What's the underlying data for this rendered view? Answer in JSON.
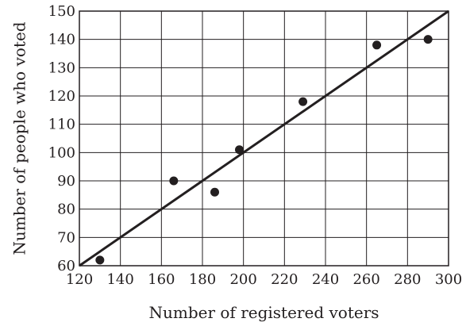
{
  "chart_data": {
    "type": "scatter",
    "xlabel": "Number of registered voters",
    "ylabel": "Number of people who voted",
    "xlim": [
      120,
      300
    ],
    "ylim": [
      60,
      150
    ],
    "xticks": [
      120,
      140,
      160,
      180,
      200,
      220,
      240,
      260,
      280,
      300
    ],
    "yticks": [
      60,
      70,
      80,
      90,
      100,
      110,
      120,
      130,
      140,
      150
    ],
    "grid": true,
    "points": [
      {
        "x": 130,
        "y": 62
      },
      {
        "x": 166,
        "y": 90
      },
      {
        "x": 186,
        "y": 86
      },
      {
        "x": 198,
        "y": 101
      },
      {
        "x": 229,
        "y": 118
      },
      {
        "x": 265,
        "y": 138
      },
      {
        "x": 290,
        "y": 140
      }
    ],
    "line_of_best_fit": {
      "x": [
        120,
        300
      ],
      "y": [
        60,
        150
      ]
    },
    "colors": {
      "ink": "#231f20"
    }
  }
}
